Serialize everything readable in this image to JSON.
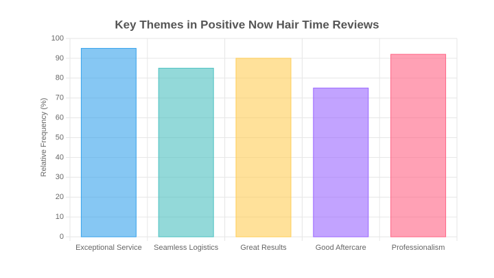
{
  "chart_data": {
    "type": "bar",
    "title": "Key Themes in Positive Now Hair Time Reviews",
    "y_label": "Relative Frequency (%)",
    "categories": [
      "Exceptional Service",
      "Seamless Logistics",
      "Great Results",
      "Good Aftercare",
      "Professionalism"
    ],
    "values": [
      95,
      85,
      90,
      75,
      92
    ],
    "colors": [
      "#36a2eb",
      "#4bc0c0",
      "#ffcd56",
      "#9966ff",
      "#ff6384"
    ],
    "ylim": [
      0,
      100
    ],
    "yticks": [
      0,
      10,
      20,
      30,
      40,
      50,
      60,
      70,
      80,
      90,
      100
    ],
    "grid": true
  }
}
